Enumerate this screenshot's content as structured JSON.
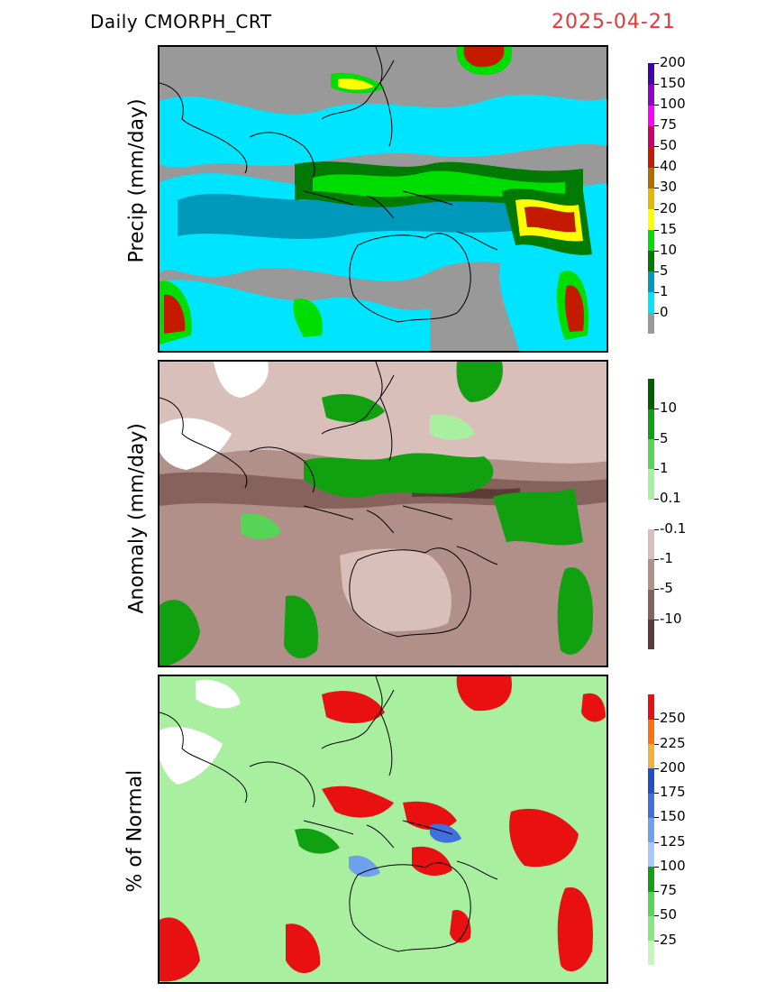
{
  "header": {
    "product": "Daily  CMORPH_CRT",
    "date": "2025-04-21",
    "date_color": "#e8373a"
  },
  "panels": [
    {
      "id": "precip",
      "ylabel": "Precip  (mm/day)",
      "background_color": "#999999",
      "colorbar": {
        "colors": [
          "#999999",
          "#00e5ff",
          "#0099bb",
          "#007a00",
          "#00dd00",
          "#ffff00",
          "#e6b800",
          "#b36b00",
          "#c41a00",
          "#cc0066",
          "#ff00ff",
          "#8f00c8",
          "#4400aa"
        ],
        "labels": [
          "0",
          "1",
          "5",
          "10",
          "15",
          "20",
          "30",
          "40",
          "50",
          "75",
          "100",
          "150",
          "200"
        ]
      }
    },
    {
      "id": "anomaly",
      "ylabel": "Anomaly  (mm/day)",
      "background_color": "#b09088",
      "colorbar": {
        "colors": [
          "#5c3a36",
          "#86625c",
          "#b09088",
          "#d9bfba",
          "#ffffff",
          "#a8f0a0",
          "#55d455",
          "#10a010",
          "#006000"
        ],
        "labels": [
          "-10",
          "-5",
          "-1",
          "-0.1",
          "0.1",
          "1",
          "5",
          "10"
        ]
      }
    },
    {
      "id": "percent",
      "ylabel": "% of Normal",
      "background_color": "#a8f0a0",
      "colorbar": {
        "colors": [
          "#c4f7bc",
          "#88e880",
          "#55d455",
          "#10a010",
          "#a8c8ff",
          "#6ea0f0",
          "#4070e0",
          "#1e50c8",
          "#f0b040",
          "#ff7010",
          "#e81010"
        ],
        "labels": [
          "25",
          "50",
          "75",
          "100",
          "125",
          "150",
          "175",
          "200",
          "225",
          "250"
        ]
      }
    }
  ]
}
